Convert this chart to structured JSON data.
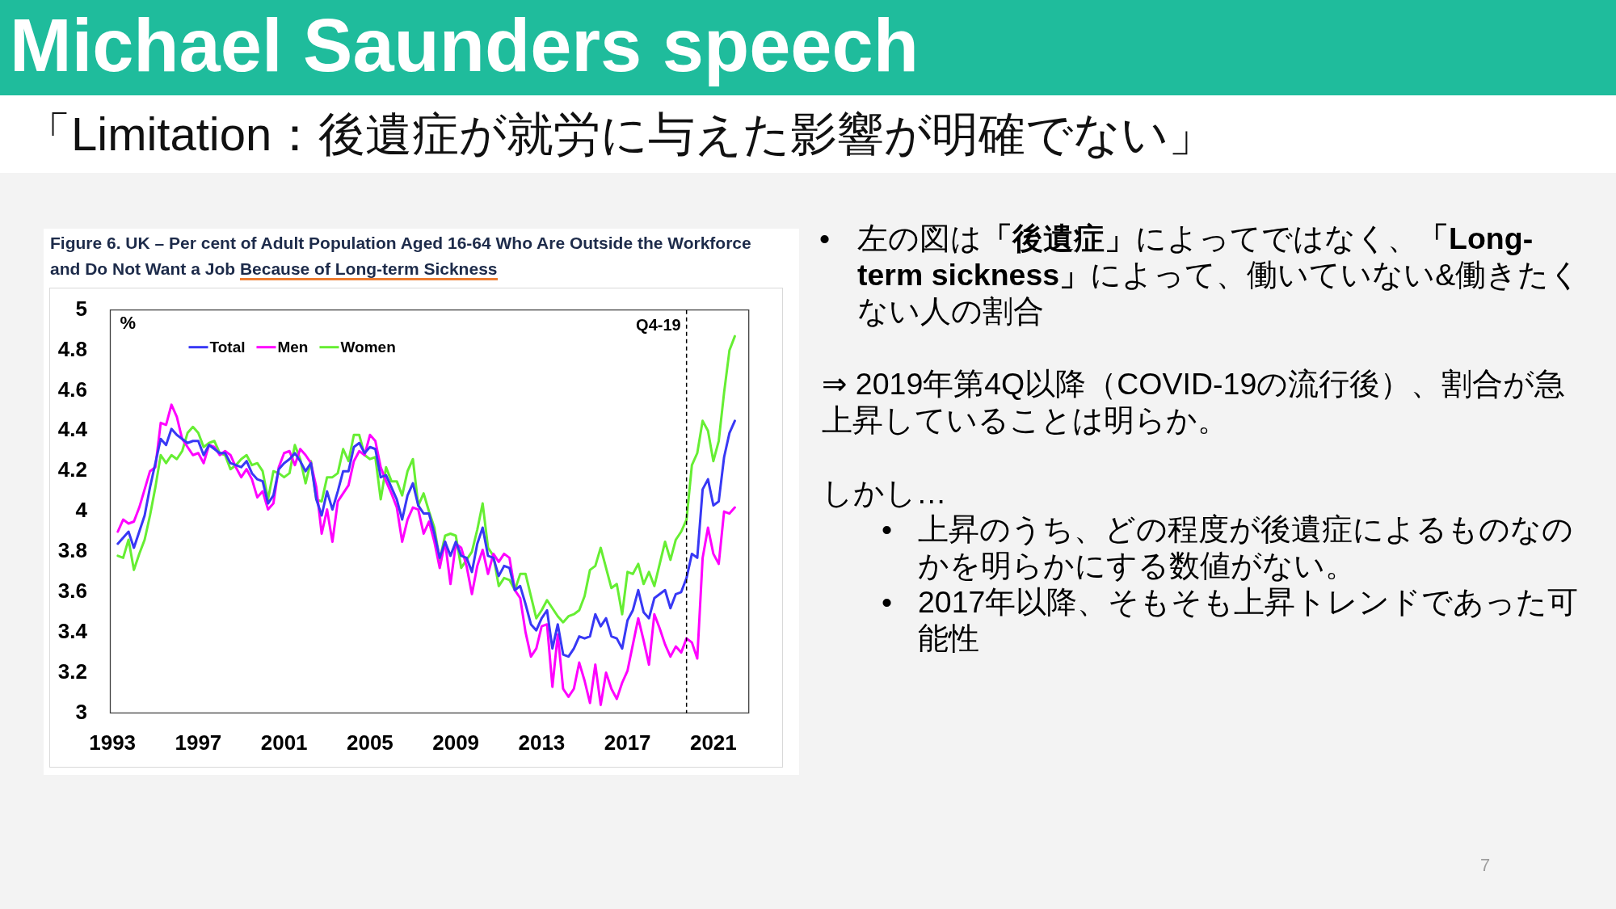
{
  "chart_data": {
    "type": "line",
    "title": "Michael Saunders speech",
    "subtitle": "「Limitation：後遺症が就労に与えた影響が明確でない」",
    "ylabel": "%",
    "annotations": [
      "Figure 6. UK – Per cent of Adult Population Aged 16-64 Who Are Outside the Workforce",
      "and Do Not Want a Job",
      "Because of Long-term Sickness",
      "•",
      "左の図は",
      "「後遺症」",
      "によってではなく、",
      "「Long-",
      "term sickness」",
      "によって、働いていない&働きたく",
      "ない人の割合",
      "⇒ 2019年第4Q以降（COVID-19の流行後）、割合が急上昇していることは明らか。",
      "しかし…",
      "•",
      "上昇のうち、どの程度が後遺症によるものなのかを明らかにする数値がない。",
      "•",
      "2017年以降、そもそも上昇トレンドであった可能性",
      "7"
    ],
    "x": [
      1993.25,
      1993.5,
      1993.75,
      1994,
      1994.25,
      1994.5,
      1994.75,
      1995,
      1995.25,
      1995.5,
      1995.75,
      1996,
      1996.25,
      1996.5,
      1996.75,
      1997,
      1997.25,
      1997.5,
      1997.75,
      1998,
      1998.25,
      1998.5,
      1998.75,
      1999,
      1999.25,
      1999.5,
      1999.75,
      2000,
      2000.25,
      2000.5,
      2000.75,
      2001,
      2001.25,
      2001.5,
      2001.75,
      2002,
      2002.25,
      2002.5,
      2002.75,
      2003,
      2003.25,
      2003.5,
      2003.75,
      2004,
      2004.25,
      2004.5,
      2004.75,
      2005,
      2005.25,
      2005.5,
      2005.75,
      2006,
      2006.25,
      2006.5,
      2006.75,
      2007,
      2007.25,
      2007.5,
      2007.75,
      2008,
      2008.25,
      2008.5,
      2008.75,
      2009,
      2009.25,
      2009.5,
      2009.75,
      2010,
      2010.25,
      2010.5,
      2010.75,
      2011,
      2011.25,
      2011.5,
      2011.75,
      2012,
      2012.25,
      2012.5,
      2012.75,
      2013,
      2013.25,
      2013.5,
      2013.75,
      2014,
      2014.25,
      2014.5,
      2014.75,
      2015,
      2015.25,
      2015.5,
      2015.75,
      2016,
      2016.25,
      2016.5,
      2016.75,
      2017,
      2017.25,
      2017.5,
      2017.75,
      2018,
      2018.25,
      2018.5,
      2018.75,
      2019,
      2019.25,
      2019.5,
      2019.75,
      2020,
      2020.25,
      2020.5,
      2020.75,
      2021,
      2021.25,
      2021.5,
      2021.75,
      2022
    ],
    "series": [
      {
        "name": "Total",
        "color": "#3838f5",
        "values": [
          3.84,
          3.87,
          3.9,
          3.82,
          3.9,
          3.98,
          4.12,
          4.24,
          4.36,
          4.33,
          4.41,
          4.38,
          4.36,
          4.34,
          4.35,
          4.35,
          4.28,
          4.33,
          4.31,
          4.29,
          4.29,
          4.24,
          4.23,
          4.22,
          4.25,
          4.19,
          4.16,
          4.15,
          4.04,
          4.08,
          4.21,
          4.24,
          4.26,
          4.29,
          4.25,
          4.2,
          4.24,
          4.06,
          3.98,
          4.1,
          4.01,
          4.1,
          4.2,
          4.2,
          4.32,
          4.34,
          4.29,
          4.32,
          4.31,
          4.17,
          4.18,
          4.12,
          4.06,
          3.96,
          4.08,
          4.14,
          4.03,
          3.99,
          3.99,
          3.89,
          3.77,
          3.85,
          3.78,
          3.85,
          3.78,
          3.77,
          3.7,
          3.84,
          3.92,
          3.78,
          3.77,
          3.68,
          3.73,
          3.72,
          3.61,
          3.63,
          3.54,
          3.44,
          3.41,
          3.47,
          3.51,
          3.32,
          3.44,
          3.29,
          3.28,
          3.32,
          3.38,
          3.37,
          3.38,
          3.49,
          3.43,
          3.47,
          3.38,
          3.37,
          3.32,
          3.46,
          3.51,
          3.61,
          3.5,
          3.47,
          3.57,
          3.59,
          3.61,
          3.52,
          3.59,
          3.6,
          3.67,
          3.79,
          3.77,
          4.11,
          4.16,
          4.03,
          4.05,
          4.27,
          4.39,
          4.45
        ]
      },
      {
        "name": "Men",
        "color": "#ff00ff",
        "values": [
          3.9,
          3.96,
          3.94,
          3.95,
          4.02,
          4.11,
          4.2,
          4.22,
          4.44,
          4.43,
          4.53,
          4.47,
          4.36,
          4.32,
          4.28,
          4.29,
          4.24,
          4.33,
          4.32,
          4.28,
          4.3,
          4.28,
          4.22,
          4.17,
          4.21,
          4.16,
          4.07,
          4.1,
          4.01,
          4.04,
          4.22,
          4.29,
          4.3,
          4.23,
          4.31,
          4.28,
          4.24,
          4.12,
          3.89,
          4.01,
          3.85,
          4.05,
          4.09,
          4.13,
          4.25,
          4.3,
          4.28,
          4.38,
          4.35,
          4.22,
          4.15,
          4.09,
          4.02,
          3.85,
          3.96,
          4.02,
          4.01,
          3.89,
          3.95,
          3.85,
          3.72,
          3.85,
          3.64,
          3.84,
          3.82,
          3.73,
          3.59,
          3.73,
          3.81,
          3.69,
          3.79,
          3.75,
          3.79,
          3.77,
          3.61,
          3.57,
          3.4,
          3.28,
          3.32,
          3.43,
          3.44,
          3.13,
          3.39,
          3.12,
          3.08,
          3.12,
          3.25,
          3.16,
          3.05,
          3.24,
          3.04,
          3.2,
          3.12,
          3.07,
          3.15,
          3.21,
          3.34,
          3.47,
          3.36,
          3.24,
          3.49,
          3.42,
          3.34,
          3.28,
          3.33,
          3.3,
          3.37,
          3.35,
          3.27,
          3.77,
          3.92,
          3.79,
          3.74,
          4.0,
          3.99,
          4.02
        ]
      },
      {
        "name": "Women",
        "color": "#66ee33",
        "values": [
          3.78,
          3.77,
          3.86,
          3.71,
          3.79,
          3.86,
          3.98,
          4.12,
          4.28,
          4.24,
          4.28,
          4.26,
          4.3,
          4.39,
          4.42,
          4.39,
          4.32,
          4.34,
          4.35,
          4.29,
          4.28,
          4.21,
          4.23,
          4.26,
          4.28,
          4.23,
          4.24,
          4.2,
          4.06,
          4.2,
          4.19,
          4.17,
          4.19,
          4.33,
          4.26,
          4.14,
          4.25,
          4.06,
          4.05,
          4.17,
          4.17,
          4.19,
          4.31,
          4.25,
          4.38,
          4.38,
          4.28,
          4.26,
          4.27,
          4.06,
          4.22,
          4.15,
          4.15,
          4.08,
          4.2,
          4.26,
          4.03,
          4.09,
          4.0,
          3.92,
          3.76,
          3.88,
          3.89,
          3.88,
          3.72,
          3.76,
          3.8,
          3.91,
          4.04,
          3.82,
          3.78,
          3.63,
          3.67,
          3.66,
          3.61,
          3.69,
          3.69,
          3.58,
          3.47,
          3.51,
          3.56,
          3.52,
          3.48,
          3.45,
          3.48,
          3.49,
          3.51,
          3.58,
          3.71,
          3.73,
          3.82,
          3.72,
          3.62,
          3.64,
          3.49,
          3.7,
          3.69,
          3.74,
          3.64,
          3.7,
          3.63,
          3.74,
          3.85,
          3.76,
          3.86,
          3.9,
          3.96,
          4.23,
          4.29,
          4.45,
          4.4,
          4.25,
          4.35,
          4.59,
          4.8,
          4.87
        ]
      }
    ],
    "xlim": [
      1992.9,
      2022.65
    ],
    "xticks": [
      1993,
      1997,
      2001,
      2005,
      2009,
      2013,
      2017,
      2021
    ],
    "ylim": [
      3,
      5
    ],
    "yticks": [
      3,
      3.2,
      3.4,
      3.6,
      3.8,
      4,
      4.2,
      4.4,
      4.6,
      4.8,
      5
    ],
    "ref_lines": [
      {
        "axis": "x",
        "value": 2019.75,
        "label": "Q4-19",
        "color": "#000000",
        "line_style": "dashed"
      }
    ],
    "legend": "top left"
  }
}
